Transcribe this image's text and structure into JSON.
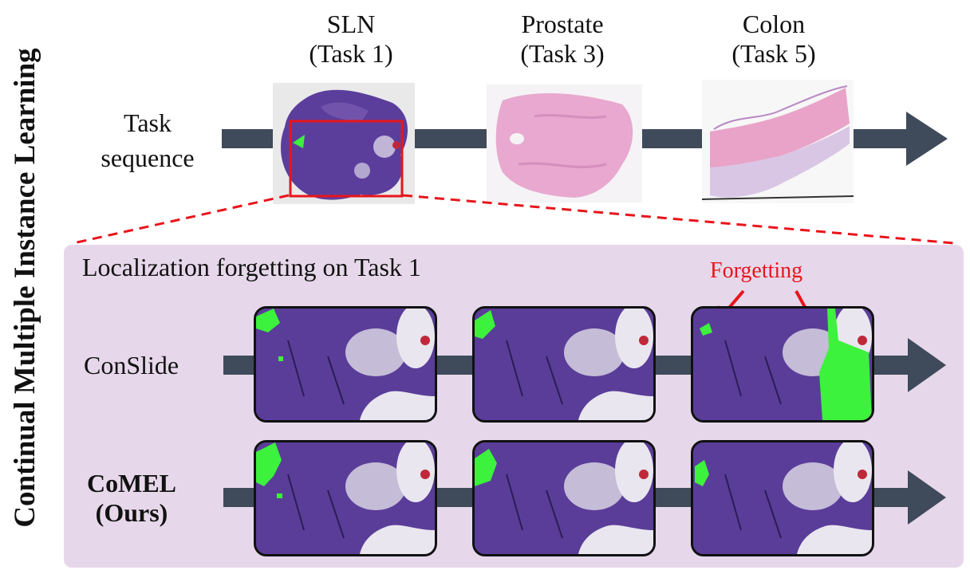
{
  "side_title": "Continual Multiple Instance Learning",
  "task_sequence_label": "Task sequence",
  "tasks": [
    {
      "name": "SLN",
      "sub": "(Task 1)"
    },
    {
      "name": "Prostate",
      "sub": "(Task 3)"
    },
    {
      "name": "Colon",
      "sub": "(Task 5)"
    }
  ],
  "panel_title": "Localization forgetting on Task 1",
  "forgetting_label": "Forgetting",
  "rows": [
    {
      "label_line1": "ConSlide",
      "label_line2": ""
    },
    {
      "label_line1": "CoMEL",
      "label_line2": "(Ours)"
    }
  ],
  "colors": {
    "arrow": "#3f4a5a",
    "panel": "#e6d8ea",
    "highlight": "#e8151b",
    "tumor": "#3cf23c",
    "tissue": "#5a3d99"
  }
}
